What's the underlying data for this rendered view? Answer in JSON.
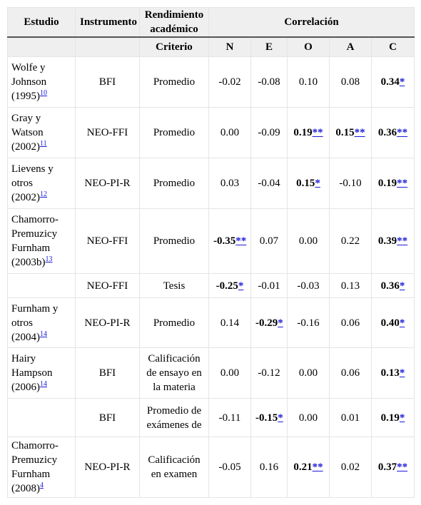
{
  "headers": {
    "estudio": "Estudio",
    "instrumento": "Instrumento",
    "rendimiento": "Rendimiento académico",
    "correlacion": "Correlación",
    "criterio": "Criterio",
    "cols": [
      "N",
      "E",
      "O",
      "A",
      "C"
    ]
  },
  "rows": [
    {
      "study": "Wolfe y Johnson (1995)",
      "ref": "10",
      "instrument": "BFI",
      "criterion": "Promedio",
      "vals": [
        {
          "t": "-0.02"
        },
        {
          "t": "-0.08"
        },
        {
          "t": "0.10"
        },
        {
          "t": "0.08"
        },
        {
          "t": "0.34",
          "b": true,
          "s": "*"
        }
      ]
    },
    {
      "study": "Gray y Watson (2002)",
      "ref": "11",
      "instrument": "NEO-FFI",
      "criterion": "Promedio",
      "vals": [
        {
          "t": "0.00"
        },
        {
          "t": "-0.09"
        },
        {
          "t": "0.19",
          "b": true,
          "s": "**"
        },
        {
          "t": "0.15",
          "b": true,
          "s": "**"
        },
        {
          "t": "0.36",
          "b": true,
          "s": "**"
        }
      ]
    },
    {
      "study": "Lievens y otros (2002)",
      "ref": "12",
      "instrument": "NEO-PI-R",
      "criterion": "Promedio",
      "vals": [
        {
          "t": "0.03"
        },
        {
          "t": "-0.04"
        },
        {
          "t": "0.15",
          "b": true,
          "s": "*"
        },
        {
          "t": "-0.10"
        },
        {
          "t": "0.19",
          "b": true,
          "s": "**"
        }
      ]
    },
    {
      "study": "Chamorro-Premuzicy Furnham (2003b)",
      "ref": "13",
      "instrument": "NEO-FFI",
      "criterion": "Promedio",
      "vals": [
        {
          "t": "-0.35",
          "b": true,
          "s": "**"
        },
        {
          "t": "0.07"
        },
        {
          "t": "0.00"
        },
        {
          "t": "0.22"
        },
        {
          "t": "0.39",
          "b": true,
          "s": "**"
        }
      ]
    },
    {
      "study": "",
      "ref": "",
      "instrument": "NEO-FFI",
      "criterion": "Tesis",
      "vals": [
        {
          "t": "-0.25",
          "b": true,
          "s": "*"
        },
        {
          "t": "-0.01"
        },
        {
          "t": "-0.03"
        },
        {
          "t": "0.13"
        },
        {
          "t": "0.36",
          "b": true,
          "s": "*"
        }
      ]
    },
    {
      "study": "Furnham y otros (2004)",
      "ref": "14",
      "instrument": "NEO-PI-R",
      "criterion": "Promedio",
      "vals": [
        {
          "t": "0.14"
        },
        {
          "t": "-0.29",
          "b": true,
          "s": "*"
        },
        {
          "t": "-0.16"
        },
        {
          "t": "0.06"
        },
        {
          "t": "0.40",
          "b": true,
          "s": "*"
        }
      ]
    },
    {
      "study": "Hairy Hampson (2006)",
      "ref": "14",
      "instrument": "BFI",
      "criterion": "Calificación de ensayo en la materia",
      "vals": [
        {
          "t": "0.00"
        },
        {
          "t": "-0.12"
        },
        {
          "t": "0.00"
        },
        {
          "t": "0.06"
        },
        {
          "t": "0.13",
          "b": true,
          "s": "*"
        }
      ]
    },
    {
      "study": "",
      "ref": "",
      "instrument": "BFI",
      "criterion": "Promedio de exámenes de",
      "vals": [
        {
          "t": "-0.11"
        },
        {
          "t": "-0.15",
          "b": true,
          "s": "*"
        },
        {
          "t": "0.00"
        },
        {
          "t": "0.01"
        },
        {
          "t": "0.19",
          "b": true,
          "s": "*"
        }
      ]
    },
    {
      "study": "Chamorro-Premuzicy Furnham (2008)",
      "ref": "4",
      "instrument": "NEO-PI-R",
      "criterion": "Calificación en examen",
      "vals": [
        {
          "t": "-0.05"
        },
        {
          "t": "0.16"
        },
        {
          "t": "0.21",
          "b": true,
          "s": "**"
        },
        {
          "t": "0.02"
        },
        {
          "t": "0.37",
          "b": true,
          "s": "**"
        }
      ]
    }
  ]
}
